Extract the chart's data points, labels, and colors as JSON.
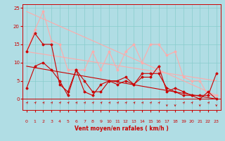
{
  "title": "",
  "xlabel": "Vent moyen/en rafales ( km/h )",
  "xlabel_color": "#cc0000",
  "background_color": "#b0dde4",
  "grid_color": "#88cccc",
  "xlim": [
    -0.5,
    23.5
  ],
  "ylim": [
    -3,
    26
  ],
  "yticks": [
    0,
    5,
    10,
    15,
    20,
    25
  ],
  "xticks": [
    0,
    1,
    2,
    3,
    4,
    5,
    6,
    7,
    8,
    9,
    10,
    11,
    12,
    13,
    14,
    15,
    16,
    17,
    18,
    19,
    20,
    21,
    22,
    23
  ],
  "lines": [
    {
      "x": [
        0,
        1,
        2,
        3,
        4,
        5,
        6,
        7,
        8,
        9,
        10,
        11,
        12,
        13,
        14,
        15,
        16,
        17,
        18,
        19,
        20,
        21,
        22,
        23
      ],
      "y": [
        13,
        19,
        24,
        16,
        15,
        8,
        8,
        8,
        13,
        8,
        13,
        8,
        13,
        15,
        10,
        15,
        15,
        12,
        13,
        6,
        5,
        5,
        1,
        1
      ],
      "color": "#ffaaaa",
      "lw": 0.8,
      "marker": "D",
      "ms": 1.5
    },
    {
      "x": [
        0,
        1,
        2,
        3,
        4,
        5,
        6,
        7,
        8,
        9,
        10,
        11,
        12,
        13,
        14,
        15,
        16,
        17,
        18,
        19,
        20,
        21,
        22,
        23
      ],
      "y": [
        13,
        18,
        15,
        15,
        4,
        2,
        8,
        5,
        2,
        2,
        5,
        5,
        6,
        4,
        6,
        6,
        9,
        2,
        3,
        2,
        1,
        1,
        1,
        7
      ],
      "color": "#cc0000",
      "lw": 0.8,
      "marker": "D",
      "ms": 1.5
    },
    {
      "x": [
        0,
        1,
        2,
        3,
        4,
        5,
        6,
        7,
        8,
        9,
        10,
        11,
        12,
        13,
        14,
        15,
        16,
        17,
        18,
        19,
        20,
        21,
        22,
        23
      ],
      "y": [
        3,
        9,
        10,
        8,
        5,
        1,
        8,
        2,
        1,
        4,
        5,
        4,
        5,
        4,
        7,
        7,
        7,
        3,
        2,
        1,
        1,
        0,
        2,
        0
      ],
      "color": "#cc0000",
      "lw": 0.8,
      "marker": "D",
      "ms": 1.5
    },
    {
      "x": [
        0,
        23
      ],
      "y": [
        9,
        0
      ],
      "color": "#cc0000",
      "lw": 0.8,
      "marker": null,
      "ms": 0
    },
    {
      "x": [
        0,
        23
      ],
      "y": [
        24,
        1
      ],
      "color": "#ffaaaa",
      "lw": 0.8,
      "marker": null,
      "ms": 0
    },
    {
      "x": [
        0,
        23
      ],
      "y": [
        13,
        5
      ],
      "color": "#ffaaaa",
      "lw": 0.8,
      "marker": null,
      "ms": 0
    }
  ],
  "wind_arrows": {
    "x": [
      0,
      1,
      2,
      3,
      4,
      5,
      6,
      7,
      8,
      9,
      10,
      11,
      12,
      13,
      14,
      15,
      16,
      17,
      18,
      19,
      20,
      21,
      22,
      23
    ],
    "up": [
      1,
      1,
      1,
      1,
      1,
      1,
      1,
      1,
      1,
      1,
      1,
      1,
      1,
      1,
      1,
      1,
      1,
      0,
      0,
      1,
      1,
      0,
      1,
      0
    ],
    "color": "#cc0000"
  }
}
